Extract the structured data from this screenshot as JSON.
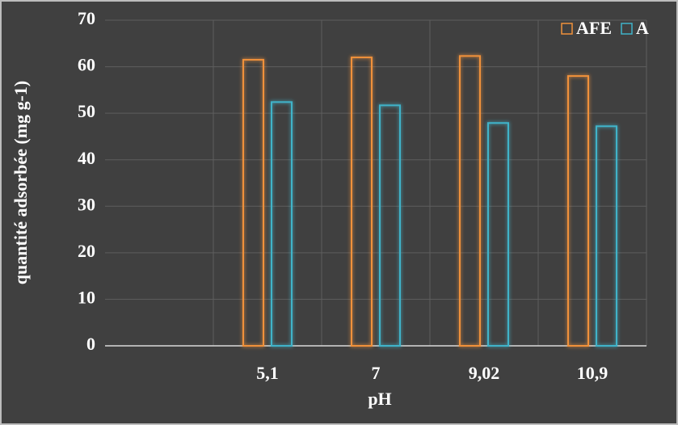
{
  "chart_data": {
    "type": "bar",
    "categories": [
      null,
      "5,1",
      "7",
      "9,02",
      "10,9"
    ],
    "series": [
      {
        "name": "AFE",
        "color": "#f0913a",
        "values": [
          null,
          61.5,
          62,
          62.3,
          58
        ]
      },
      {
        "name": "A",
        "color": "#3fb3c9",
        "values": [
          null,
          52.4,
          51.7,
          47.9,
          47.2
        ]
      }
    ],
    "ylim": [
      0,
      70
    ],
    "yticks": [
      0,
      10,
      20,
      30,
      40,
      50,
      60,
      70
    ],
    "xlabel": "pH",
    "ylabel": "quantité adsorbée (mg g-1)",
    "grid": true,
    "legend": "top-right"
  }
}
